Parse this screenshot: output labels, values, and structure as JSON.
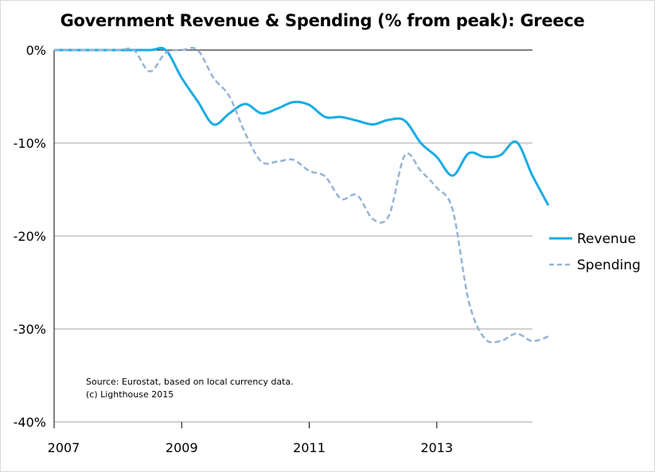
{
  "chart_data": {
    "type": "line",
    "title": "Government Revenue & Spending (% from peak): Greece",
    "xlabel": "",
    "ylabel": "",
    "x_ticks": [
      "2007",
      "2009",
      "2011",
      "2013"
    ],
    "y_ticks": [
      "0%",
      "-10%",
      "-20%",
      "-30%",
      "-40%"
    ],
    "xlim": [
      2007,
      2014.5
    ],
    "ylim": [
      -40,
      0
    ],
    "grid": "horizontal",
    "legend_position": "right",
    "colors": {
      "revenue": "#1aace5",
      "spending": "#95b3d7",
      "axis": "#000000",
      "grid": "#a6a6a6"
    },
    "annotation": [
      "Source: Eurostat, based on local currency data.",
      "(c) Lighthouse 2015"
    ],
    "series": [
      {
        "name": "Revenue",
        "style": "solid",
        "points": [
          [
            2007.0,
            0.0
          ],
          [
            2007.5,
            0.0
          ],
          [
            2008.0,
            0.0
          ],
          [
            2008.5,
            0.0
          ],
          [
            2008.75,
            0.0
          ],
          [
            2009.0,
            -3.0
          ],
          [
            2009.25,
            -5.5
          ],
          [
            2009.5,
            -8.0
          ],
          [
            2009.75,
            -6.8
          ],
          [
            2010.0,
            -5.8
          ],
          [
            2010.25,
            -6.8
          ],
          [
            2010.5,
            -6.3
          ],
          [
            2010.75,
            -5.6
          ],
          [
            2011.0,
            -5.9
          ],
          [
            2011.25,
            -7.2
          ],
          [
            2011.5,
            -7.2
          ],
          [
            2011.75,
            -7.6
          ],
          [
            2012.0,
            -8.0
          ],
          [
            2012.25,
            -7.5
          ],
          [
            2012.5,
            -7.6
          ],
          [
            2012.75,
            -10.0
          ],
          [
            2013.0,
            -11.5
          ],
          [
            2013.25,
            -13.5
          ],
          [
            2013.5,
            -11.1
          ],
          [
            2013.75,
            -11.5
          ],
          [
            2014.0,
            -11.3
          ],
          [
            2014.25,
            -9.9
          ],
          [
            2014.5,
            -13.5
          ],
          [
            2014.75,
            -16.7
          ]
        ]
      },
      {
        "name": "Spending",
        "style": "dashed",
        "points": [
          [
            2007.0,
            0.0
          ],
          [
            2007.5,
            0.0
          ],
          [
            2008.0,
            0.0
          ],
          [
            2008.25,
            0.0
          ],
          [
            2008.5,
            -2.3
          ],
          [
            2008.75,
            -0.3
          ],
          [
            2009.0,
            0.0
          ],
          [
            2009.25,
            0.0
          ],
          [
            2009.5,
            -3.0
          ],
          [
            2009.75,
            -5.0
          ],
          [
            2010.0,
            -9.0
          ],
          [
            2010.25,
            -12.0
          ],
          [
            2010.5,
            -12.0
          ],
          [
            2010.75,
            -11.8
          ],
          [
            2011.0,
            -13.0
          ],
          [
            2011.25,
            -13.6
          ],
          [
            2011.5,
            -16.0
          ],
          [
            2011.75,
            -15.6
          ],
          [
            2012.0,
            -18.2
          ],
          [
            2012.25,
            -17.8
          ],
          [
            2012.5,
            -11.3
          ],
          [
            2012.75,
            -13.0
          ],
          [
            2013.0,
            -14.8
          ],
          [
            2013.25,
            -17.2
          ],
          [
            2013.5,
            -27.0
          ],
          [
            2013.75,
            -31.0
          ],
          [
            2014.0,
            -31.3
          ],
          [
            2014.25,
            -30.5
          ],
          [
            2014.5,
            -31.3
          ],
          [
            2014.75,
            -30.8
          ]
        ]
      }
    ]
  }
}
